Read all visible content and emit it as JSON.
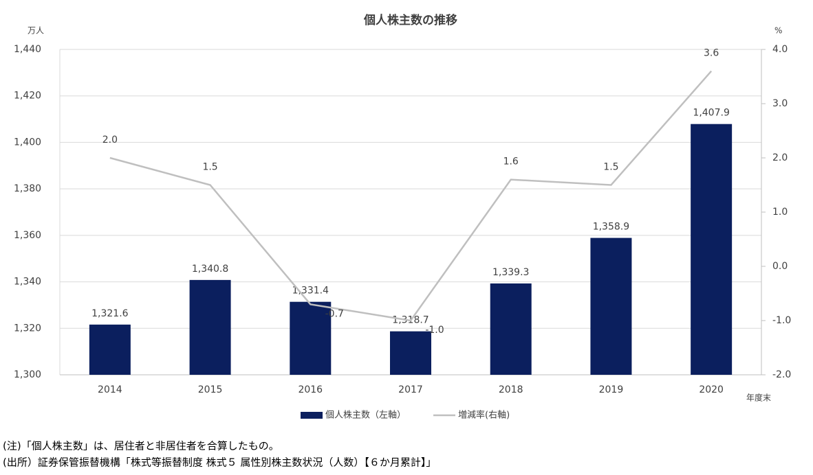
{
  "chart_data": {
    "type": "bar",
    "title": "個人株主数の推移",
    "y_label": "万人",
    "y2_label": "%",
    "x_label": "年度末",
    "categories": [
      "2014",
      "2015",
      "2016",
      "2017",
      "2018",
      "2019",
      "2020"
    ],
    "series": [
      {
        "name": "個人株主数（左軸）",
        "type": "bar",
        "color": "#0b1f5e",
        "values": [
          1321.6,
          1340.8,
          1331.4,
          1318.7,
          1339.3,
          1358.9,
          1407.9
        ],
        "value_labels": [
          "1,321.6",
          "1,340.8",
          "1,331.4",
          "1,318.7",
          "1,339.3",
          "1,358.9",
          "1,407.9"
        ]
      },
      {
        "name": "増減率(右軸)",
        "type": "line",
        "axis": "y2",
        "color": "#bfbfbf",
        "values": [
          2.0,
          1.5,
          -0.7,
          -1.0,
          1.6,
          1.5,
          3.6
        ],
        "value_labels": [
          "2.0",
          "1.5",
          "-0.7",
          "-1.0",
          "1.6",
          "1.5",
          "3.6"
        ]
      }
    ],
    "ylim": [
      1300,
      1440
    ],
    "yticks": [
      {
        "value": 1300,
        "label": "1,300"
      },
      {
        "value": 1320,
        "label": "1,320"
      },
      {
        "value": 1340,
        "label": "1,340"
      },
      {
        "value": 1360,
        "label": "1,360"
      },
      {
        "value": 1380,
        "label": "1,380"
      },
      {
        "value": 1400,
        "label": "1,400"
      },
      {
        "value": 1420,
        "label": "1,420"
      },
      {
        "value": 1440,
        "label": "1,440"
      }
    ],
    "y2lim": [
      -2,
      4
    ],
    "y2ticks": [
      {
        "value": -2,
        "label": "-2.0"
      },
      {
        "value": -1,
        "label": "-1.0"
      },
      {
        "value": 0,
        "label": "0.0"
      },
      {
        "value": 1,
        "label": "1.0"
      },
      {
        "value": 2,
        "label": "2.0"
      },
      {
        "value": 3,
        "label": "3.0"
      },
      {
        "value": 4,
        "label": "4.0"
      }
    ],
    "grid": true,
    "legend": "bottom",
    "notes": [
      "(注)「個人株主数」は、居住者と非居住者を合算したもの。",
      "(出所）証券保管振替機構「株式等振替制度 株式５ 属性別株主数状況（人数）【６か月累計】」"
    ]
  }
}
